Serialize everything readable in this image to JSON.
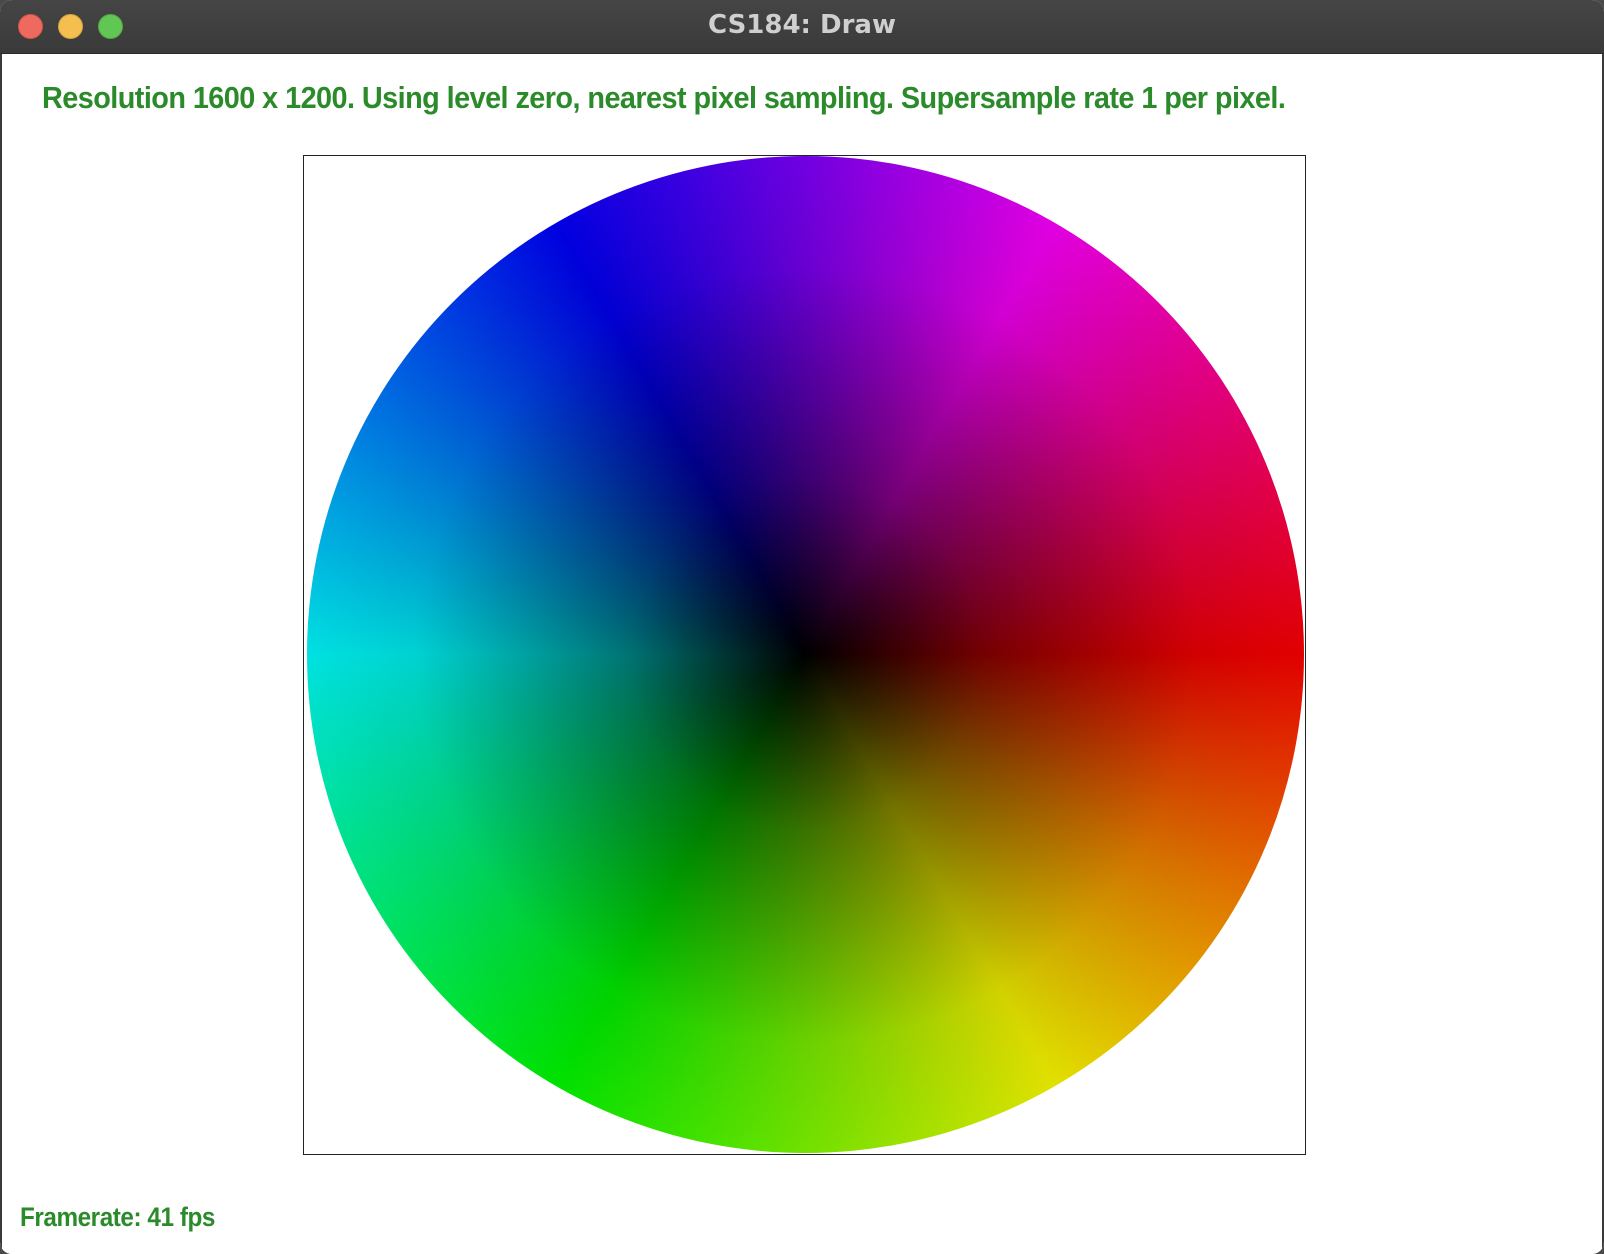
{
  "window": {
    "title": "CS184: Draw"
  },
  "status": {
    "text": "Resolution 1600 x 1200. Using level zero, nearest pixel sampling. Supersample rate 1 per pixel."
  },
  "footer": {
    "framerate": "Framerate: 41 fps"
  },
  "colors": {
    "status_text": "#2b8b2b",
    "titlebar": "#3f3f3f",
    "close": "#ee6a5e",
    "minimize": "#f5bf4f",
    "zoom": "#62c655"
  },
  "canvas": {
    "content": "hue color wheel, dark center"
  }
}
